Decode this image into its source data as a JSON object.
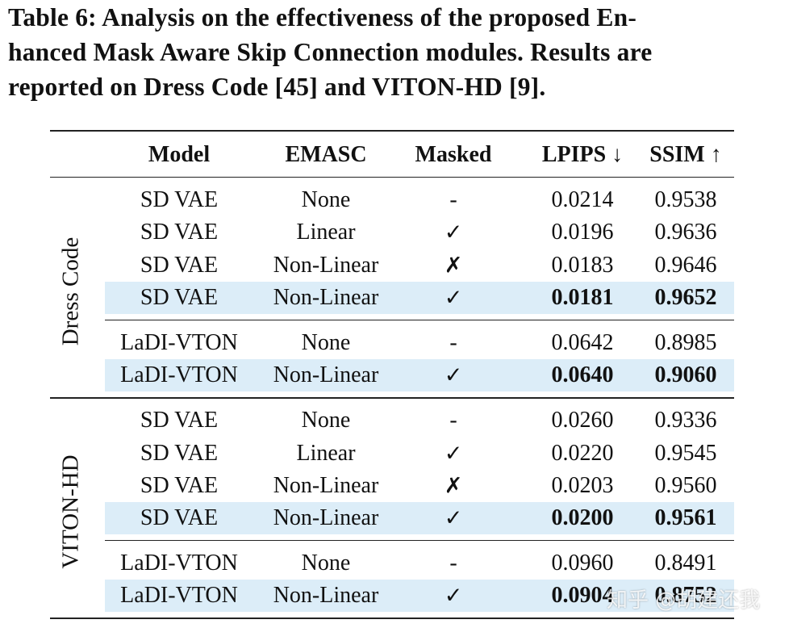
{
  "caption_lines": [
    "Table 6: Analysis on the effectiveness of the proposed En-",
    "hanced Mask Aware Skip Connection modules. Results are",
    "reported on Dress Code [45] and VITON-HD [9]."
  ],
  "table": {
    "header": [
      "Model",
      "EMASC",
      "Masked",
      "LPIPS ↓",
      "SSIM ↑"
    ],
    "groups": [
      {
        "label": "Dress Code",
        "blocks": [
          [
            {
              "cells": [
                "SD VAE",
                "None",
                "-",
                "0.0214",
                "0.9538"
              ],
              "best": false
            },
            {
              "cells": [
                "SD VAE",
                "Linear",
                "✓",
                "0.0196",
                "0.9636"
              ],
              "best": false
            },
            {
              "cells": [
                "SD VAE",
                "Non-Linear",
                "✗",
                "0.0183",
                "0.9646"
              ],
              "best": false
            },
            {
              "cells": [
                "SD VAE",
                "Non-Linear",
                "✓",
                "0.0181",
                "0.9652"
              ],
              "best": true
            }
          ],
          [
            {
              "cells": [
                "LaDI-VTON",
                "None",
                "-",
                "0.0642",
                "0.8985"
              ],
              "best": false
            },
            {
              "cells": [
                "LaDI-VTON",
                "Non-Linear",
                "✓",
                "0.0640",
                "0.9060"
              ],
              "best": true
            }
          ]
        ]
      },
      {
        "label": "VITON-HD",
        "blocks": [
          [
            {
              "cells": [
                "SD VAE",
                "None",
                "-",
                "0.0260",
                "0.9336"
              ],
              "best": false
            },
            {
              "cells": [
                "SD VAE",
                "Linear",
                "✓",
                "0.0220",
                "0.9545"
              ],
              "best": false
            },
            {
              "cells": [
                "SD VAE",
                "Non-Linear",
                "✗",
                "0.0203",
                "0.9560"
              ],
              "best": false
            },
            {
              "cells": [
                "SD VAE",
                "Non-Linear",
                "✓",
                "0.0200",
                "0.9561"
              ],
              "best": true
            }
          ],
          [
            {
              "cells": [
                "LaDI-VTON",
                "None",
                "-",
                "0.0960",
                "0.8491"
              ],
              "best": false
            },
            {
              "cells": [
                "LaDI-VTON",
                "Non-Linear",
                "✓",
                "0.0904",
                "0.8752"
              ],
              "best": true
            }
          ]
        ]
      }
    ]
  },
  "watermark": "知乎 @胡建还我"
}
